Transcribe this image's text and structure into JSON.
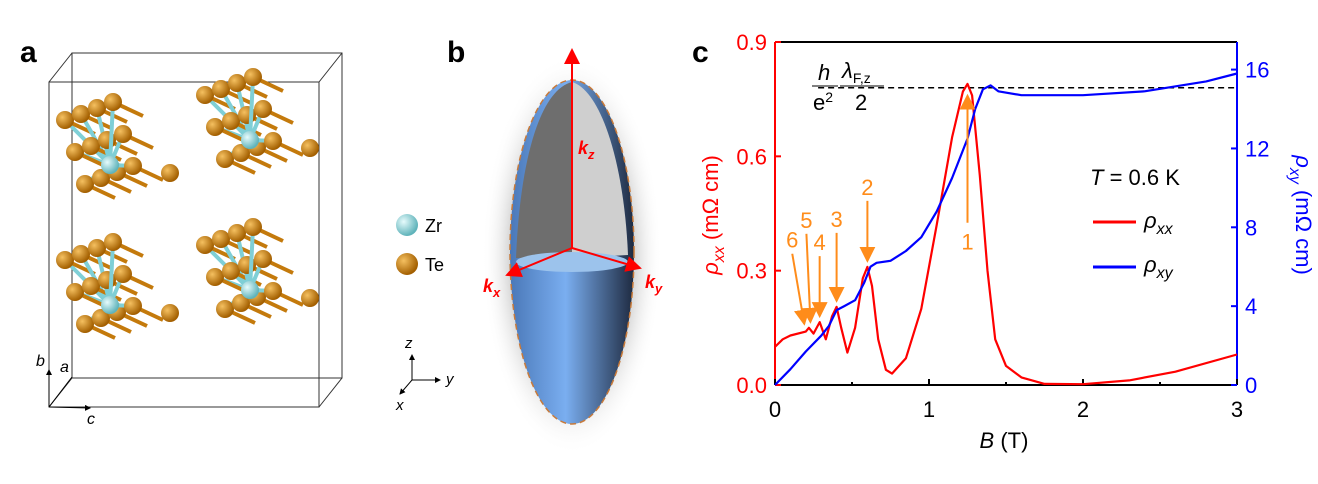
{
  "panels": {
    "a": {
      "label": "a",
      "legend": [
        {
          "name": "Zr",
          "color": "#8fd3d8"
        },
        {
          "name": "Te",
          "color": "#d4860f"
        }
      ],
      "lattice_axes": [
        "b",
        "a",
        "c"
      ],
      "cart_axes": [
        "z",
        "y",
        "x"
      ]
    },
    "b": {
      "label": "b",
      "axes": {
        "kz": "k",
        "kz_sub": "z",
        "kx": "k",
        "kx_sub": "x",
        "ky": "k",
        "ky_sub": "y"
      }
    },
    "c": {
      "label": "c"
    }
  },
  "chart_data": {
    "type": "line",
    "xlabel_var": "B",
    "xlabel_unit": " (T)",
    "ylabel_left": "ρ",
    "ylabel_left_sub": "xx",
    "ylabel_left_unit": " (mΩ cm)",
    "ylabel_right": "ρ",
    "ylabel_right_sub": "xy",
    "ylabel_right_unit": " (mΩ cm)",
    "xlim": [
      0,
      3
    ],
    "ylim_left": [
      0,
      0.9
    ],
    "ylim_right": [
      0,
      17.4
    ],
    "xticks": [
      "0",
      "1",
      "2",
      "3"
    ],
    "yticks_left": [
      "0.0",
      "0.3",
      "0.6",
      "0.9"
    ],
    "yticks_right": [
      "0",
      "4",
      "8",
      "12",
      "16"
    ],
    "colors": {
      "rho_xx": "#ff0000",
      "rho_xy": "#0000ff",
      "annot": "#ff8c1a"
    },
    "legend": {
      "title": "T = 0.6 K",
      "title_var": "T",
      "title_rest": " = 0.6 K",
      "placement": "right-middle"
    },
    "series": [
      {
        "name": "ρxx",
        "name_base": "ρ",
        "name_sub": "xx",
        "axis": "left",
        "x": [
          0,
          0.05,
          0.1,
          0.2,
          0.22,
          0.25,
          0.29,
          0.33,
          0.37,
          0.4,
          0.43,
          0.47,
          0.52,
          0.57,
          0.6,
          0.63,
          0.67,
          0.72,
          0.76,
          0.85,
          0.95,
          1.05,
          1.15,
          1.22,
          1.25,
          1.28,
          1.33,
          1.38,
          1.43,
          1.5,
          1.6,
          1.75,
          2.0,
          2.3,
          2.6,
          3.0
        ],
        "y": [
          0.1,
          0.12,
          0.13,
          0.14,
          0.15,
          0.135,
          0.165,
          0.12,
          0.18,
          0.205,
          0.15,
          0.085,
          0.15,
          0.28,
          0.31,
          0.26,
          0.12,
          0.04,
          0.03,
          0.07,
          0.2,
          0.42,
          0.65,
          0.77,
          0.79,
          0.76,
          0.55,
          0.3,
          0.12,
          0.05,
          0.02,
          0.003,
          0.002,
          0.012,
          0.035,
          0.08
        ]
      },
      {
        "name": "ρxy",
        "name_base": "ρ",
        "name_sub": "xy",
        "axis": "right",
        "x": [
          0,
          0.1,
          0.2,
          0.3,
          0.35,
          0.4,
          0.45,
          0.52,
          0.58,
          0.62,
          0.66,
          0.75,
          0.85,
          0.95,
          1.05,
          1.15,
          1.25,
          1.3,
          1.35,
          1.4,
          1.45,
          1.6,
          2.0,
          2.4,
          2.8,
          3.0
        ],
        "y": [
          0,
          0.8,
          1.7,
          2.5,
          3.0,
          3.8,
          4.0,
          4.3,
          5.2,
          6.0,
          6.2,
          6.3,
          6.8,
          7.5,
          8.8,
          10.5,
          12.5,
          14.0,
          15.0,
          15.2,
          14.9,
          14.7,
          14.7,
          14.9,
          15.4,
          15.8
        ]
      }
    ],
    "reference_line": {
      "value_left": 0.78,
      "label_num": "h",
      "label_den": "e",
      "label_den_sup": "2",
      "label_lambda": "λ",
      "label_lambda_sub": "F,z",
      "label_half": "2"
    },
    "annotations": [
      {
        "text": "1",
        "x": 1.25,
        "y": 0.78,
        "direction": "up"
      },
      {
        "text": "2",
        "x": 0.6,
        "y": 0.31,
        "direction": "down"
      },
      {
        "text": "3",
        "x": 0.4,
        "y": 0.205,
        "direction": "down"
      },
      {
        "text": "4",
        "x": 0.29,
        "y": 0.165,
        "direction": "down"
      },
      {
        "text": "5",
        "x": 0.23,
        "y": 0.15,
        "direction": "down"
      },
      {
        "text": "6",
        "x": 0.19,
        "y": 0.145,
        "direction": "down"
      }
    ]
  }
}
